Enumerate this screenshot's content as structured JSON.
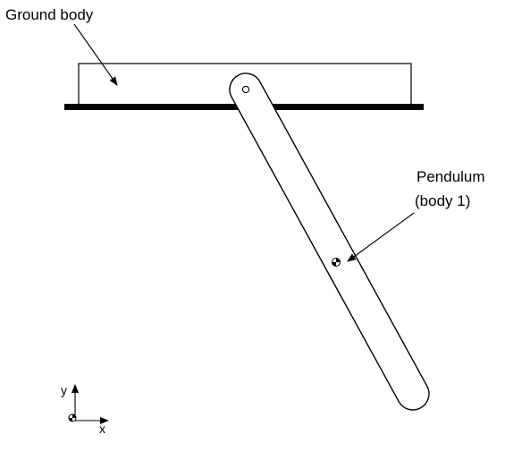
{
  "labels": {
    "ground": "Ground body",
    "pendulum_line1": "Pendulum",
    "pendulum_line2": "(body 1)",
    "axis_x": "x",
    "axis_y": "y"
  },
  "colors": {
    "stroke": "#000000",
    "fill": "#ffffff"
  }
}
